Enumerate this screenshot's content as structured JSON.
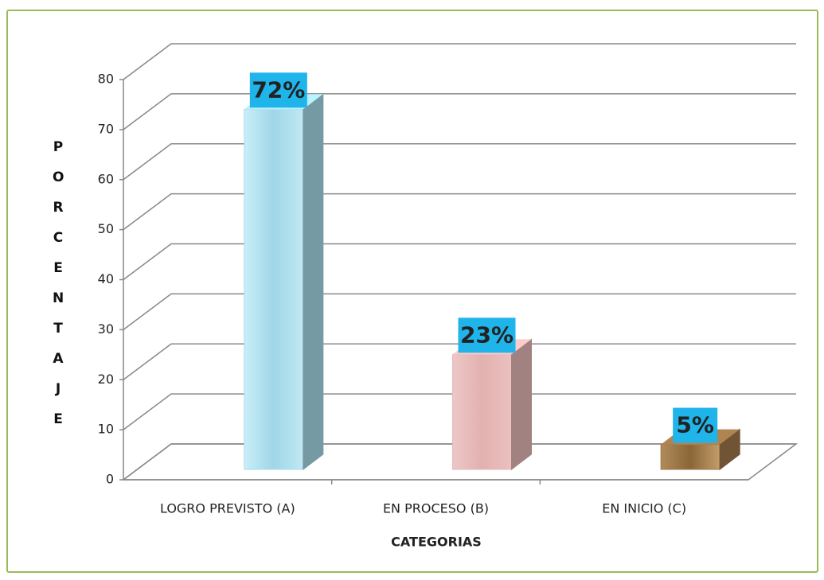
{
  "chart_data": {
    "type": "bar3d",
    "x_label": "CATEGORIAS",
    "y_label": "PORCENTAJE",
    "categories": [
      "LOGRO PREVISTO (A)",
      "EN PROCESO (B)",
      "EN INICIO (C)"
    ],
    "values": [
      72,
      23,
      5
    ],
    "value_labels": [
      "72%",
      "23%",
      "5%"
    ],
    "colors": [
      "#a9dcea",
      "#e6b9b8",
      "#a0784a"
    ],
    "label_box_color": "#1fb4ea",
    "ylim": [
      0,
      80
    ],
    "yticks": [
      0,
      10,
      20,
      30,
      40,
      50,
      60,
      70,
      80
    ],
    "grid": true
  }
}
